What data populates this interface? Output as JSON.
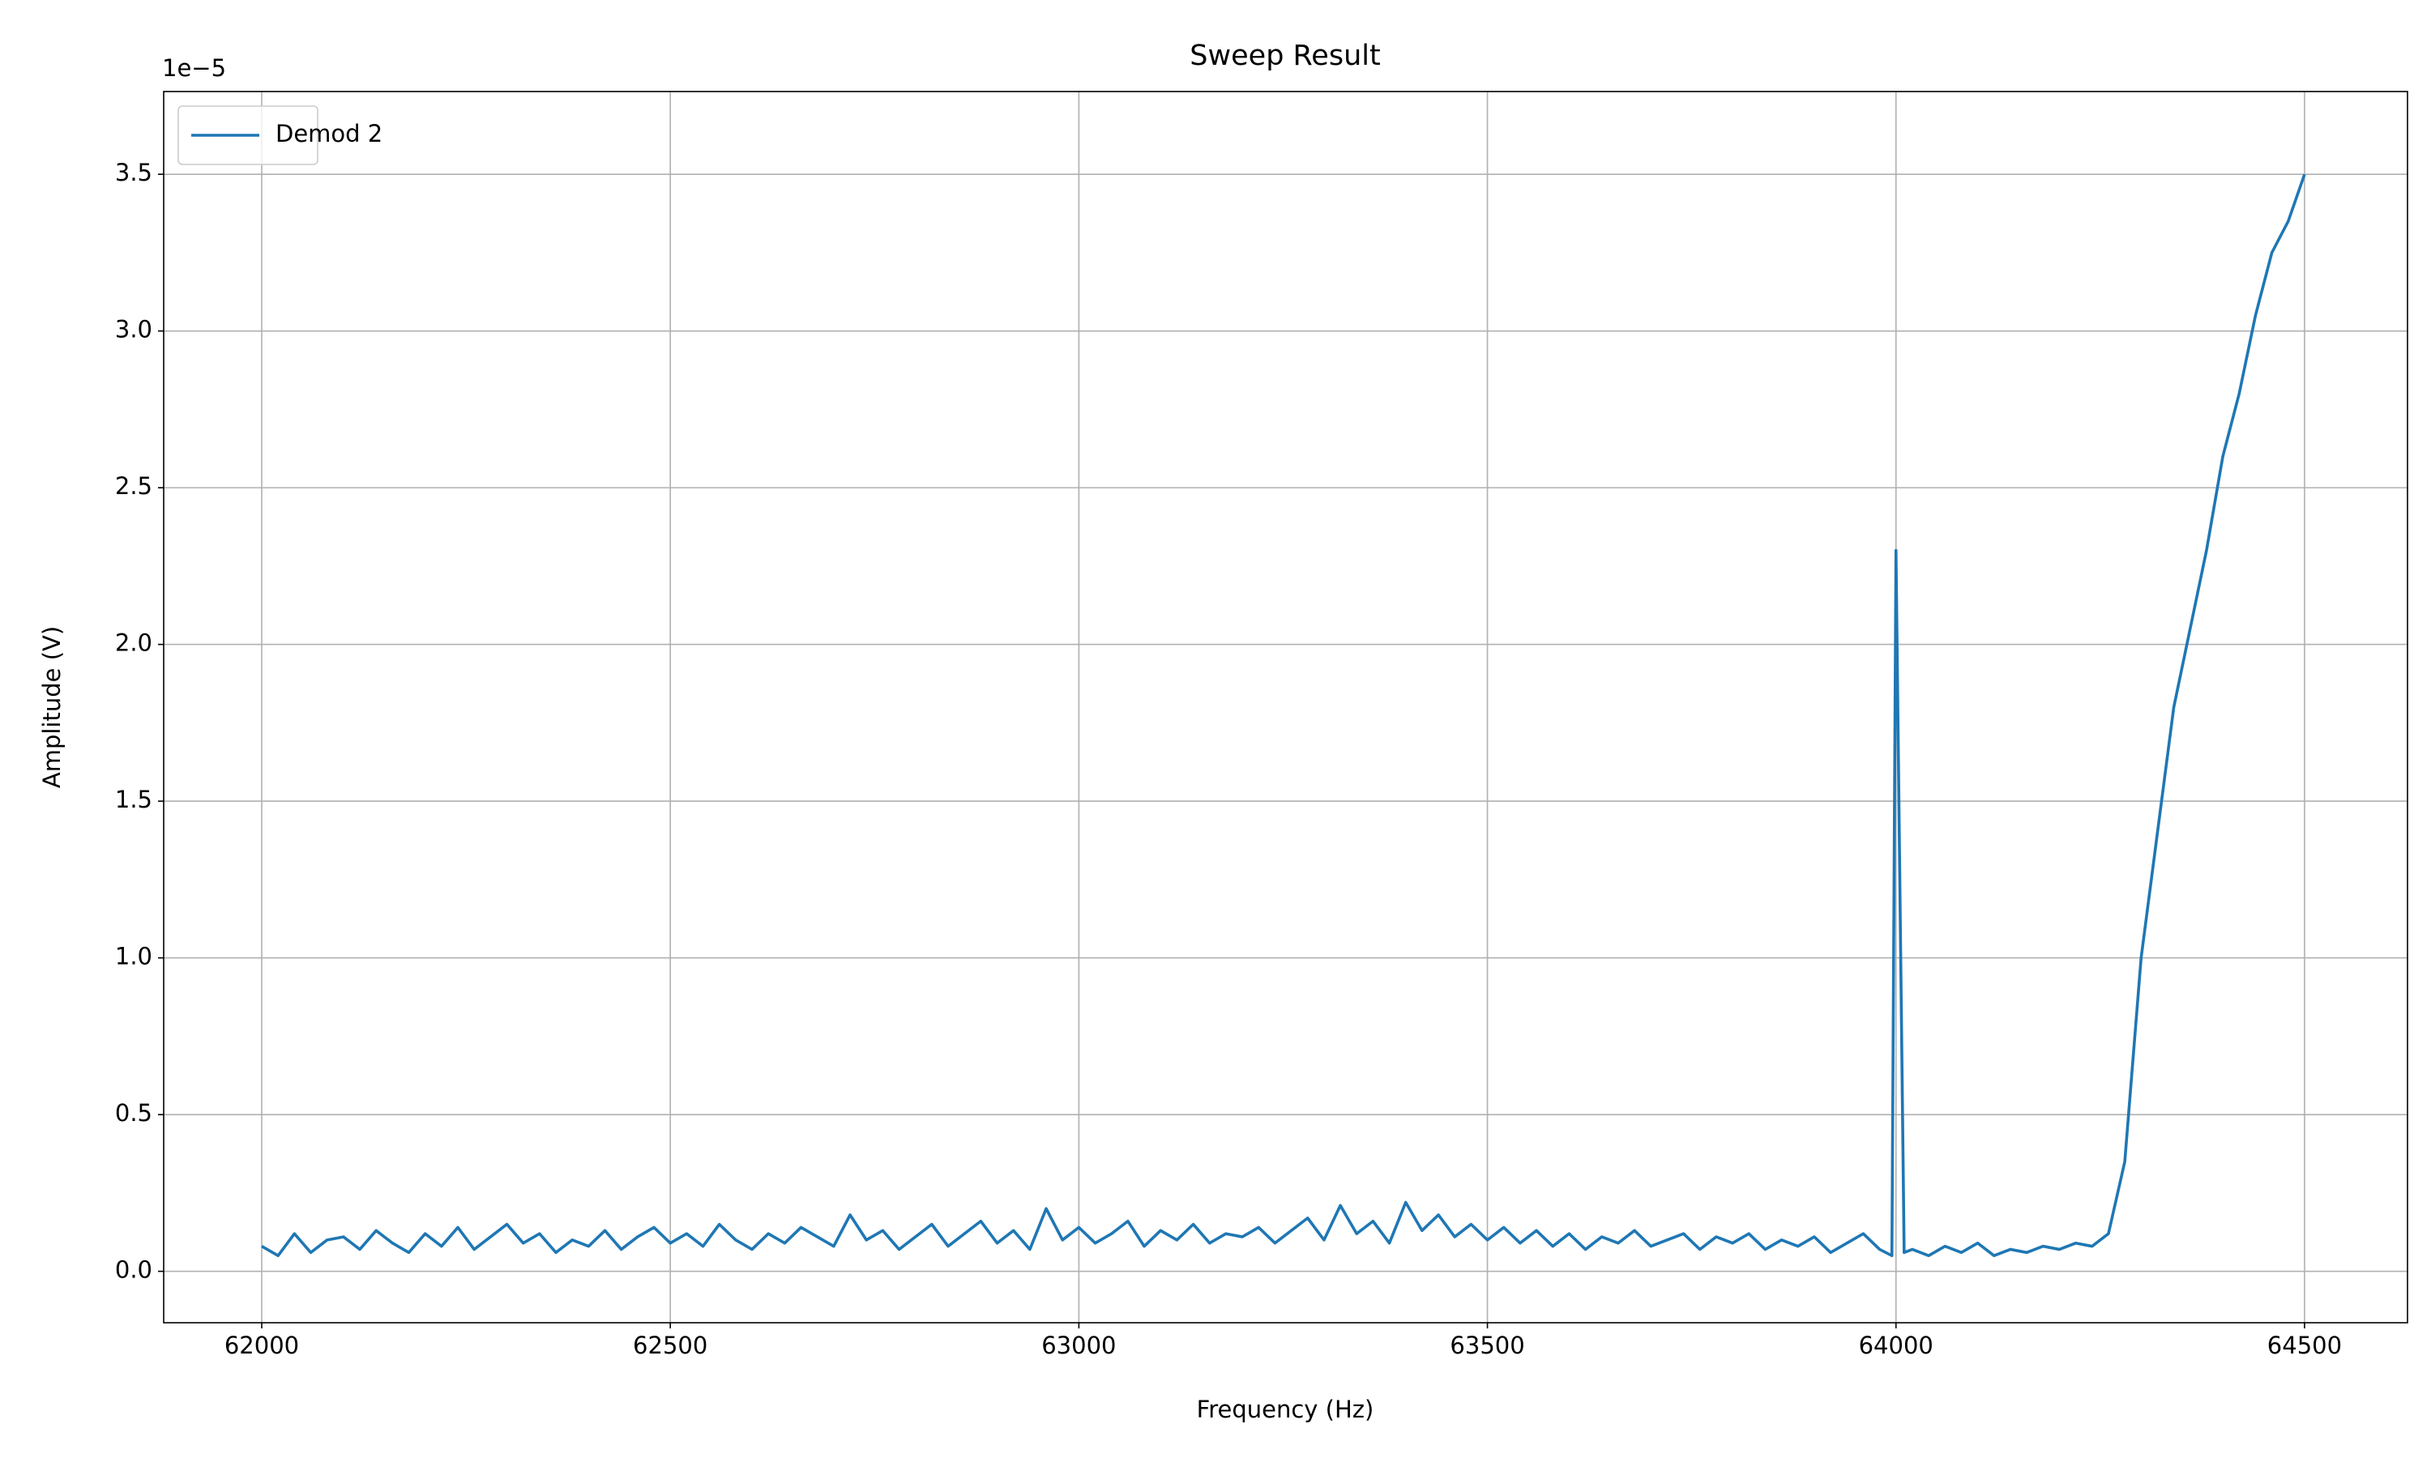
{
  "chart_data": {
    "type": "line",
    "title": "Sweep Result",
    "xlabel": "Frequency (Hz)",
    "ylabel": "Amplitude (V)",
    "y_offset_label": "1e−5",
    "x": [
      62000,
      62020,
      62040,
      62060,
      62080,
      62100,
      62120,
      62140,
      62160,
      62180,
      62200,
      62220,
      62240,
      62260,
      62280,
      62300,
      62320,
      62340,
      62360,
      62380,
      62400,
      62420,
      62440,
      62460,
      62480,
      62500,
      62520,
      62540,
      62560,
      62580,
      62600,
      62620,
      62640,
      62660,
      62680,
      62700,
      62720,
      62740,
      62760,
      62780,
      62800,
      62820,
      62840,
      62860,
      62880,
      62900,
      62920,
      62940,
      62960,
      62980,
      63000,
      63020,
      63040,
      63060,
      63080,
      63100,
      63120,
      63140,
      63160,
      63180,
      63200,
      63220,
      63240,
      63260,
      63280,
      63300,
      63320,
      63340,
      63360,
      63380,
      63400,
      63420,
      63440,
      63460,
      63480,
      63500,
      63520,
      63540,
      63560,
      63580,
      63600,
      63620,
      63640,
      63660,
      63680,
      63700,
      63720,
      63740,
      63760,
      63780,
      63800,
      63820,
      63840,
      63860,
      63880,
      63900,
      63920,
      63940,
      63960,
      63980,
      63995,
      64000,
      64010,
      64020,
      64040,
      64060,
      64080,
      64100,
      64120,
      64140,
      64160,
      64180,
      64200,
      64220,
      64240,
      64260,
      64280,
      64300,
      64320,
      64340,
      64360,
      64380,
      64400,
      64420,
      64440,
      64460,
      64480,
      64500
    ],
    "series": [
      {
        "name": "Demod 2",
        "color": "#1f77b4",
        "values": [
          0.08,
          0.05,
          0.12,
          0.06,
          0.1,
          0.11,
          0.07,
          0.13,
          0.09,
          0.06,
          0.12,
          0.08,
          0.14,
          0.07,
          0.11,
          0.15,
          0.09,
          0.12,
          0.06,
          0.1,
          0.08,
          0.13,
          0.07,
          0.11,
          0.14,
          0.09,
          0.12,
          0.08,
          0.15,
          0.1,
          0.07,
          0.12,
          0.09,
          0.14,
          0.11,
          0.08,
          0.18,
          0.1,
          0.13,
          0.07,
          0.11,
          0.15,
          0.08,
          0.12,
          0.16,
          0.09,
          0.13,
          0.07,
          0.2,
          0.1,
          0.14,
          0.09,
          0.12,
          0.16,
          0.08,
          0.13,
          0.1,
          0.15,
          0.09,
          0.12,
          0.11,
          0.14,
          0.09,
          0.13,
          0.17,
          0.1,
          0.21,
          0.12,
          0.16,
          0.09,
          0.22,
          0.13,
          0.18,
          0.11,
          0.15,
          0.1,
          0.14,
          0.09,
          0.13,
          0.08,
          0.12,
          0.07,
          0.11,
          0.09,
          0.13,
          0.08,
          0.1,
          0.12,
          0.07,
          0.11,
          0.09,
          0.12,
          0.07,
          0.1,
          0.08,
          0.11,
          0.06,
          0.09,
          0.12,
          0.07,
          0.05,
          2.3,
          0.06,
          0.07,
          0.05,
          0.08,
          0.06,
          0.09,
          0.05,
          0.07,
          0.06,
          0.08,
          0.07,
          0.09,
          0.08,
          0.12,
          0.35,
          1.0,
          1.4,
          1.8,
          2.05,
          2.3,
          2.6,
          2.8,
          3.05,
          3.25,
          3.35,
          3.5
        ]
      }
    ],
    "xlim": [
      61880,
      64626
    ],
    "ylim": [
      -0.164,
      3.764
    ],
    "xticks": [
      62000,
      62500,
      63000,
      63500,
      64000,
      64500
    ],
    "yticks": [
      {
        "value": 0,
        "label": "0.0"
      },
      0.5,
      {
        "value": 1,
        "label": "1.0"
      },
      1.5,
      {
        "value": 2,
        "label": "2.0"
      },
      2.5,
      {
        "value": 3,
        "label": "3.0"
      },
      3.5
    ],
    "grid": true,
    "legend": "upper left"
  }
}
